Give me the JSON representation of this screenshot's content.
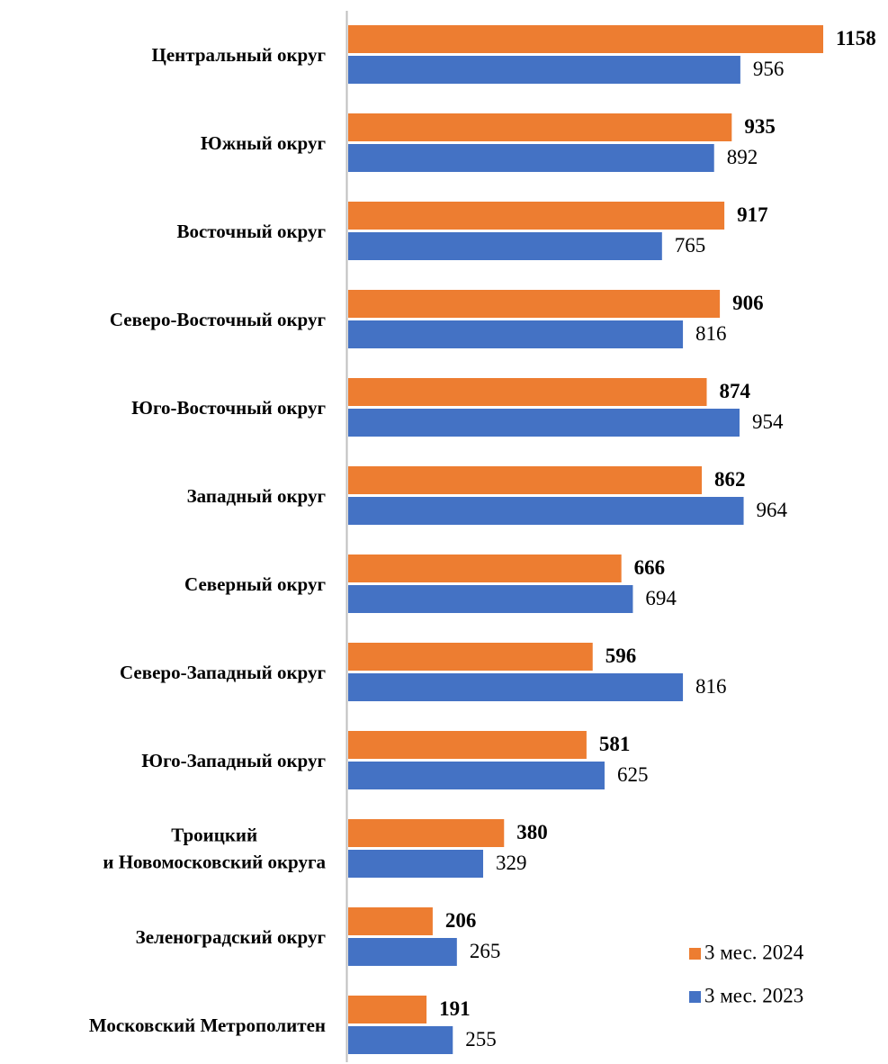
{
  "chart_data": {
    "type": "bar",
    "orientation": "horizontal",
    "categories": [
      "Центральный округ",
      "Южный округ",
      "Восточный округ",
      "Северо-Восточный округ",
      "Юго-Восточный округ",
      "Западный округ",
      "Северный округ",
      "Северо-Западный округ",
      "Юго-Западный округ",
      "Троицкий\nи Новомосковский округа",
      "Зеленоградский округ",
      "Московский Метрополитен"
    ],
    "series": [
      {
        "name": "3 мес. 2024",
        "color": "#ed7d31",
        "values": [
          1158,
          935,
          917,
          906,
          874,
          862,
          666,
          596,
          581,
          380,
          206,
          191
        ]
      },
      {
        "name": "3 мес. 2023",
        "color": "#4472c4",
        "values": [
          956,
          892,
          765,
          816,
          954,
          964,
          694,
          816,
          625,
          329,
          265,
          255
        ]
      }
    ],
    "legend": "bottom-right"
  }
}
